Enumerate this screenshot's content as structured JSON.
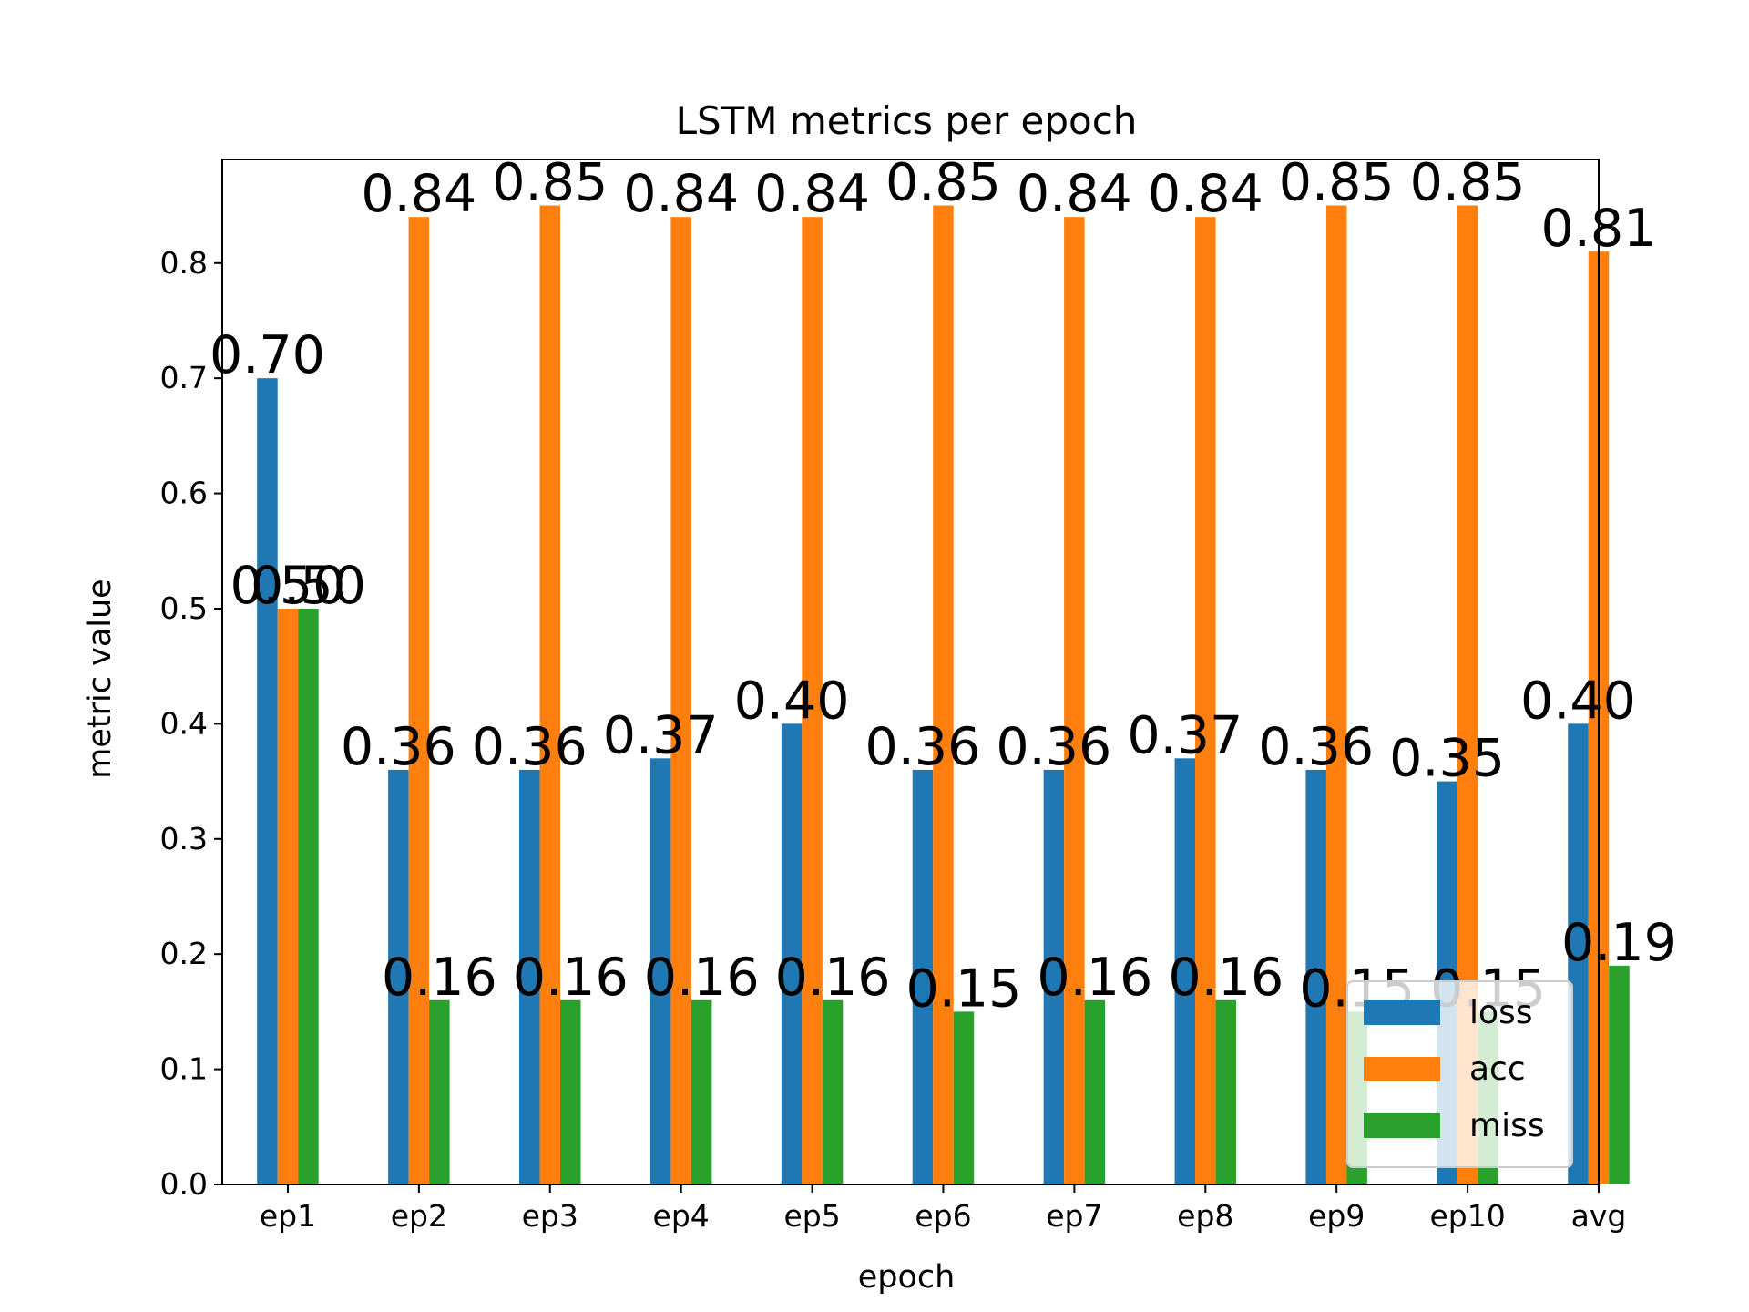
{
  "chart_data": {
    "type": "bar",
    "title": "LSTM metrics per epoch",
    "xlabel": "epoch",
    "ylabel": "metric value",
    "categories": [
      "ep1",
      "ep2",
      "ep3",
      "ep4",
      "ep5",
      "ep6",
      "ep7",
      "ep8",
      "ep9",
      "ep10",
      "avg"
    ],
    "ylim": [
      0,
      0.89
    ],
    "yticks": [
      "0.0",
      "0.1",
      "0.2",
      "0.3",
      "0.4",
      "0.5",
      "0.6",
      "0.7",
      "0.8"
    ],
    "grid": false,
    "legend_position": "lower-right",
    "series": [
      {
        "name": "loss",
        "color": "#1f77b4",
        "values": [
          0.7,
          0.36,
          0.36,
          0.37,
          0.4,
          0.36,
          0.36,
          0.37,
          0.36,
          0.35,
          0.4
        ],
        "labels": [
          "0.70",
          "0.36",
          "0.36",
          "0.37",
          "0.40",
          "0.36",
          "0.36",
          "0.37",
          "0.36",
          "0.35",
          "0.40"
        ]
      },
      {
        "name": "acc",
        "color": "#ff7f0e",
        "values": [
          0.5,
          0.84,
          0.85,
          0.84,
          0.84,
          0.85,
          0.84,
          0.84,
          0.85,
          0.85,
          0.81
        ],
        "labels": [
          "0.50",
          "0.84",
          "0.85",
          "0.84",
          "0.84",
          "0.85",
          "0.84",
          "0.84",
          "0.85",
          "0.85",
          "0.81"
        ]
      },
      {
        "name": "miss",
        "color": "#2ca02c",
        "values": [
          0.5,
          0.16,
          0.16,
          0.16,
          0.16,
          0.15,
          0.16,
          0.16,
          0.15,
          0.15,
          0.19
        ],
        "labels": [
          "0.50",
          "0.16",
          "0.16",
          "0.16",
          "0.16",
          "0.15",
          "0.16",
          "0.16",
          "0.15",
          "0.15",
          "0.19"
        ]
      }
    ]
  }
}
